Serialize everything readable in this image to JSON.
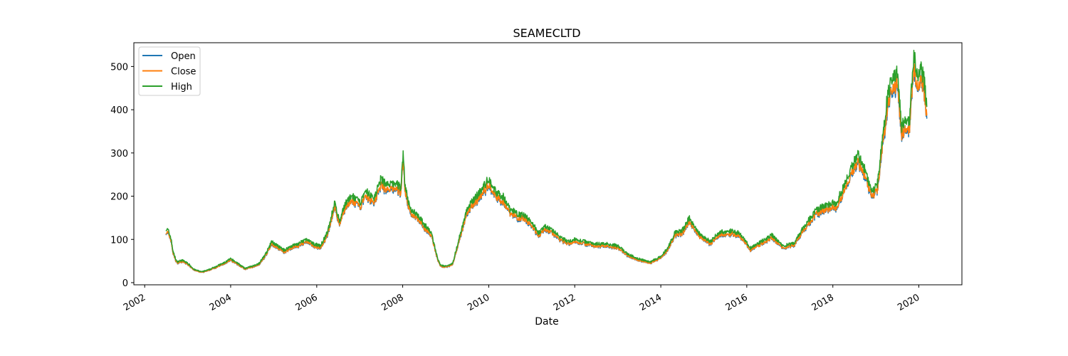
{
  "chart_data": {
    "type": "line",
    "title": "SEAMECLTD",
    "xlabel": "Date",
    "ylabel": "",
    "xlim": [
      "2001-10-01",
      "2021-01-01"
    ],
    "ylim": [
      -5,
      555
    ],
    "x_ticks": [
      "2002",
      "2004",
      "2006",
      "2008",
      "2010",
      "2012",
      "2014",
      "2016",
      "2018",
      "2020"
    ],
    "y_ticks": [
      0,
      100,
      200,
      300,
      400,
      500
    ],
    "grid": false,
    "legend": "top-left",
    "series": [
      {
        "name": "Open",
        "color": "#1f77b4"
      },
      {
        "name": "Close",
        "color": "#ff7f0e"
      },
      {
        "name": "High",
        "color": "#2ca02c"
      }
    ],
    "high_points": [
      [
        "2002-07-01",
        125
      ],
      [
        "2002-07-20",
        120
      ],
      [
        "2002-08-10",
        105
      ],
      [
        "2002-09-01",
        70
      ],
      [
        "2002-10-01",
        48
      ],
      [
        "2002-11-15",
        52
      ],
      [
        "2003-01-01",
        45
      ],
      [
        "2003-03-01",
        30
      ],
      [
        "2003-05-01",
        25
      ],
      [
        "2003-07-01",
        30
      ],
      [
        "2003-09-01",
        38
      ],
      [
        "2003-11-01",
        45
      ],
      [
        "2004-01-01",
        55
      ],
      [
        "2004-03-01",
        45
      ],
      [
        "2004-05-01",
        33
      ],
      [
        "2004-07-01",
        38
      ],
      [
        "2004-09-01",
        45
      ],
      [
        "2004-11-01",
        70
      ],
      [
        "2004-12-15",
        95
      ],
      [
        "2005-02-01",
        85
      ],
      [
        "2005-04-01",
        75
      ],
      [
        "2005-06-01",
        85
      ],
      [
        "2005-08-01",
        90
      ],
      [
        "2005-10-01",
        100
      ],
      [
        "2005-12-01",
        90
      ],
      [
        "2006-02-01",
        85
      ],
      [
        "2006-04-01",
        115
      ],
      [
        "2006-06-01",
        185
      ],
      [
        "2006-07-15",
        140
      ],
      [
        "2006-09-01",
        185
      ],
      [
        "2006-11-01",
        200
      ],
      [
        "2007-01-01",
        185
      ],
      [
        "2007-03-01",
        210
      ],
      [
        "2007-05-01",
        195
      ],
      [
        "2007-07-01",
        240
      ],
      [
        "2007-09-01",
        225
      ],
      [
        "2007-11-01",
        230
      ],
      [
        "2007-12-15",
        220
      ],
      [
        "2008-01-05",
        300
      ],
      [
        "2008-01-20",
        230
      ],
      [
        "2008-03-01",
        170
      ],
      [
        "2008-05-01",
        160
      ],
      [
        "2008-07-01",
        135
      ],
      [
        "2008-09-01",
        115
      ],
      [
        "2008-10-20",
        60
      ],
      [
        "2008-11-15",
        40
      ],
      [
        "2009-01-01",
        38
      ],
      [
        "2009-03-01",
        45
      ],
      [
        "2009-05-01",
        110
      ],
      [
        "2009-07-01",
        170
      ],
      [
        "2009-09-01",
        195
      ],
      [
        "2009-11-01",
        215
      ],
      [
        "2010-01-01",
        240
      ],
      [
        "2010-03-01",
        210
      ],
      [
        "2010-05-01",
        200
      ],
      [
        "2010-07-01",
        170
      ],
      [
        "2010-09-01",
        160
      ],
      [
        "2010-11-01",
        155
      ],
      [
        "2011-01-01",
        140
      ],
      [
        "2011-03-01",
        115
      ],
      [
        "2011-05-01",
        130
      ],
      [
        "2011-07-01",
        120
      ],
      [
        "2011-09-01",
        105
      ],
      [
        "2011-11-01",
        95
      ],
      [
        "2012-01-01",
        100
      ],
      [
        "2012-04-01",
        95
      ],
      [
        "2012-07-01",
        90
      ],
      [
        "2012-10-01",
        90
      ],
      [
        "2013-01-01",
        85
      ],
      [
        "2013-04-01",
        65
      ],
      [
        "2013-07-01",
        55
      ],
      [
        "2013-10-01",
        48
      ],
      [
        "2014-01-01",
        60
      ],
      [
        "2014-03-01",
        80
      ],
      [
        "2014-05-01",
        115
      ],
      [
        "2014-07-01",
        120
      ],
      [
        "2014-09-01",
        150
      ],
      [
        "2014-11-01",
        120
      ],
      [
        "2015-01-01",
        105
      ],
      [
        "2015-03-01",
        95
      ],
      [
        "2015-05-01",
        115
      ],
      [
        "2015-08-01",
        120
      ],
      [
        "2015-11-01",
        115
      ],
      [
        "2016-02-01",
        80
      ],
      [
        "2016-05-01",
        95
      ],
      [
        "2016-08-01",
        110
      ],
      [
        "2016-11-01",
        85
      ],
      [
        "2017-02-01",
        90
      ],
      [
        "2017-05-01",
        130
      ],
      [
        "2017-08-01",
        165
      ],
      [
        "2017-11-01",
        180
      ],
      [
        "2018-02-01",
        185
      ],
      [
        "2018-05-01",
        240
      ],
      [
        "2018-08-01",
        300
      ],
      [
        "2018-10-01",
        260
      ],
      [
        "2018-12-01",
        210
      ],
      [
        "2019-01-15",
        230
      ],
      [
        "2019-03-01",
        340
      ],
      [
        "2019-04-15",
        440
      ],
      [
        "2019-06-01",
        480
      ],
      [
        "2019-07-01",
        490
      ],
      [
        "2019-08-10",
        360
      ],
      [
        "2019-09-15",
        380
      ],
      [
        "2019-10-15",
        380
      ],
      [
        "2019-11-20",
        530
      ],
      [
        "2019-12-20",
        470
      ],
      [
        "2020-01-20",
        500
      ],
      [
        "2020-02-20",
        460
      ],
      [
        "2020-03-10",
        395
      ]
    ]
  }
}
